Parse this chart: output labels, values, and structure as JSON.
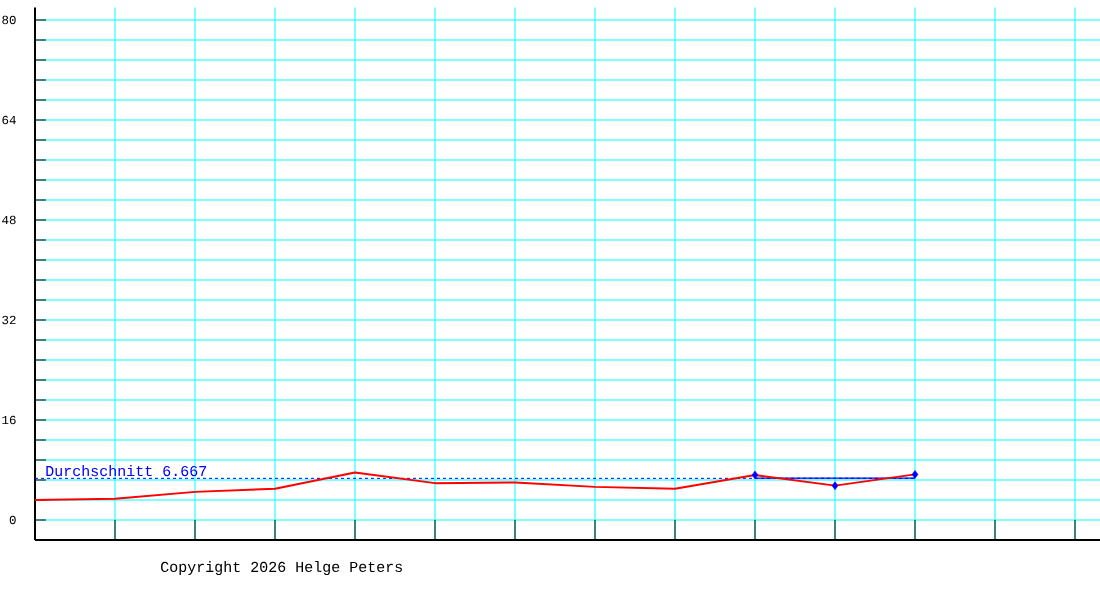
{
  "chart_data": {
    "type": "line",
    "categories": [
      null,
      null,
      null,
      null,
      null,
      null,
      null,
      null,
      null,
      null,
      null,
      null,
      null,
      null
    ],
    "series": [
      {
        "color": "#0000ff",
        "values": [
          null,
          null,
          null,
          null,
          null,
          null,
          null,
          null,
          null,
          6.7,
          6.7,
          6.7,
          null,
          null
        ]
      },
      {
        "color": "#ff0000",
        "values": [
          3.2,
          3.4,
          4.5,
          5.0,
          7.6,
          5.9,
          6.0,
          5.3,
          5.0,
          7.2,
          5.5,
          7.3,
          null,
          null
        ]
      },
      {
        "type": "scatter",
        "color": "#0000ff",
        "marker": "diamond",
        "values": [
          null,
          null,
          null,
          null,
          null,
          null,
          null,
          null,
          null,
          7.2,
          5.5,
          7.3,
          null,
          null
        ]
      }
    ],
    "ylim": [
      -3.2,
      82
    ],
    "yticks": [
      0,
      {
        "value": 3.2,
        "label": null
      },
      {
        "value": 6.4,
        "label": null
      },
      {
        "value": 9.6,
        "label": null
      },
      {
        "value": 12.8,
        "label": null
      },
      16,
      {
        "value": 19.2,
        "label": null
      },
      {
        "value": 22.4,
        "label": null
      },
      {
        "value": 25.6,
        "label": null
      },
      {
        "value": 28.8,
        "label": null
      },
      32,
      {
        "value": 35.2,
        "label": null
      },
      {
        "value": 38.4,
        "label": null
      },
      {
        "value": 41.6,
        "label": null
      },
      {
        "value": 44.8,
        "label": null
      },
      48,
      {
        "value": 51.2,
        "label": null
      },
      {
        "value": 54.4,
        "label": null
      },
      {
        "value": 57.6,
        "label": null
      },
      {
        "value": 60.8,
        "label": null
      },
      64,
      {
        "value": 67.2,
        "label": null
      },
      {
        "value": 70.4,
        "label": null
      },
      {
        "value": 73.6,
        "label": null
      },
      {
        "value": 76.8,
        "label": null
      },
      80
    ],
    "grid": true,
    "tick_labels": "y",
    "ref_lines": [
      {
        "axis": "y",
        "value": 6.667,
        "label": "Durchschnitt 6.667",
        "color": "#0000ff",
        "line_style": "dashed"
      }
    ],
    "annotations": [
      "Copyright 2026 Helge Peters"
    ]
  }
}
